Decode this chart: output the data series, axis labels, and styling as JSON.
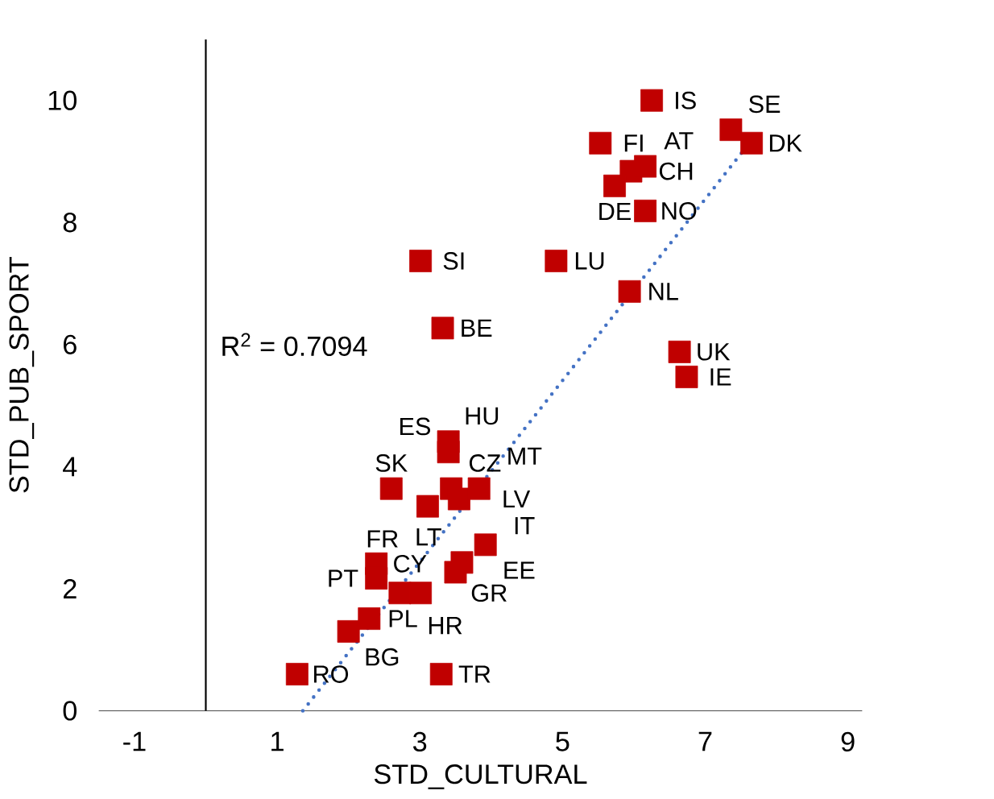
{
  "chart_data": {
    "type": "scatter",
    "xlabel": "STD_CULTURAL",
    "ylabel": "STD_PUB_SPORT",
    "xlim": [
      -1.5,
      9.2
    ],
    "ylim": [
      0,
      11
    ],
    "xticks": [
      -1,
      1,
      3,
      5,
      7,
      9
    ],
    "yticks": [
      0,
      2,
      4,
      6,
      8,
      10
    ],
    "grid": false,
    "marker": "square",
    "series": [
      {
        "color": "#c00000",
        "x": [
          1.28,
          3.3,
          2.0,
          2.29,
          2.39,
          2.39,
          2.72,
          3.01,
          3.59,
          3.5,
          3.92,
          3.11,
          2.6,
          3.44,
          3.55,
          3.83,
          3.4,
          3.4,
          6.25,
          5.53,
          7.36,
          7.65,
          5.96,
          6.16,
          5.73,
          6.16,
          3.01,
          4.91,
          5.94,
          3.32,
          6.64,
          6.74
        ],
        "values": [
          0.6,
          0.6,
          1.3,
          1.51,
          2.41,
          2.17,
          1.93,
          1.93,
          2.43,
          2.27,
          2.72,
          3.35,
          3.64,
          3.64,
          3.47,
          3.64,
          4.41,
          4.24,
          10.0,
          9.3,
          9.52,
          9.3,
          8.84,
          8.92,
          8.6,
          8.19,
          7.37,
          7.37,
          6.87,
          6.27,
          5.88,
          5.47
        ]
      },
      {
        "type": "line",
        "color": "#4472c4",
        "line_style": "dotted",
        "marker": "none",
        "x": [
          1.36,
          7.65
        ],
        "values": [
          0,
          9.35
        ]
      }
    ],
    "annotations": [
      {
        "text": "RO",
        "x": 1.28,
        "y": 0.6
      },
      {
        "text": "TR",
        "x": 3.3,
        "y": 0.6
      },
      {
        "text": "BG",
        "x": 2.0,
        "y": 1.3
      },
      {
        "text": "PL",
        "x": 2.29,
        "y": 1.51
      },
      {
        "text": "CY",
        "x": 2.39,
        "y": 2.41
      },
      {
        "text": "PT",
        "x": 2.39,
        "y": 2.17
      },
      {
        "text": "HR",
        "x": 2.72,
        "y": 1.93
      },
      {
        "text": "GR",
        "x": 3.01,
        "y": 1.93
      },
      {
        "text": "LT",
        "x": 3.59,
        "y": 2.43
      },
      {
        "text": "IT",
        "x": 3.5,
        "y": 2.27
      },
      {
        "text": "EE",
        "x": 3.92,
        "y": 2.72
      },
      {
        "text": "FR",
        "x": 3.11,
        "y": 3.35
      },
      {
        "text": "SK",
        "x": 2.6,
        "y": 3.64
      },
      {
        "text": "CZ",
        "x": 3.44,
        "y": 3.64
      },
      {
        "text": "LV",
        "x": 3.55,
        "y": 3.47
      },
      {
        "text": "MT",
        "x": 3.83,
        "y": 3.64
      },
      {
        "text": "HU",
        "x": 3.4,
        "y": 4.41
      },
      {
        "text": "ES",
        "x": 3.4,
        "y": 4.24
      },
      {
        "text": "IS",
        "x": 6.25,
        "y": 10.0
      },
      {
        "text": "FI",
        "x": 5.53,
        "y": 9.3
      },
      {
        "text": "SE",
        "x": 7.36,
        "y": 9.52
      },
      {
        "text": "DK",
        "x": 7.65,
        "y": 9.3
      },
      {
        "text": "CH",
        "x": 5.96,
        "y": 8.84
      },
      {
        "text": "AT",
        "x": 6.16,
        "y": 8.92
      },
      {
        "text": "DE",
        "x": 5.73,
        "y": 8.6
      },
      {
        "text": "NO",
        "x": 6.16,
        "y": 8.19
      },
      {
        "text": "SI",
        "x": 3.01,
        "y": 7.37
      },
      {
        "text": "LU",
        "x": 4.91,
        "y": 7.37
      },
      {
        "text": "NL",
        "x": 5.94,
        "y": 6.87
      },
      {
        "text": "BE",
        "x": 3.32,
        "y": 6.27
      },
      {
        "text": "UK",
        "x": 6.64,
        "y": 5.88
      },
      {
        "text": "IE",
        "x": 6.74,
        "y": 5.47
      },
      "R$^{2}$ = 0.7094"
    ]
  }
}
